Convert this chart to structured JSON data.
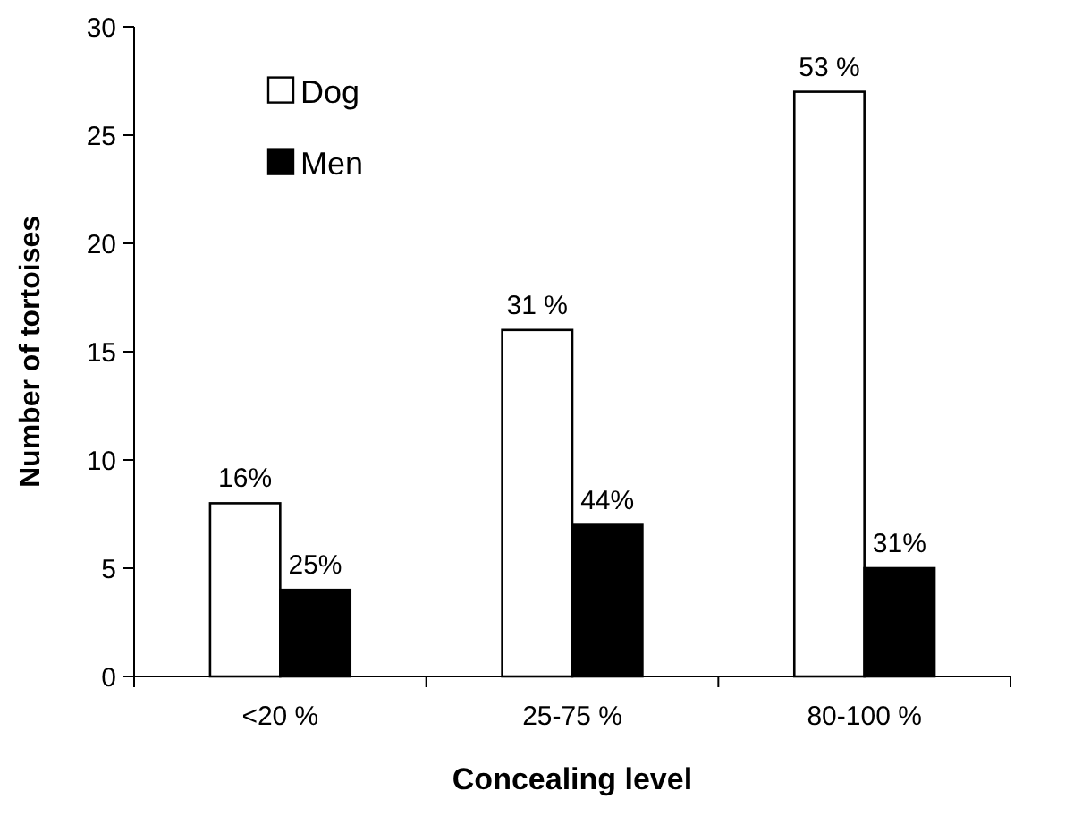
{
  "chart_data": {
    "type": "bar",
    "xlabel": "Concealing level",
    "ylabel": "Number of tortoises",
    "categories": [
      "<20 %",
      "25-75 %",
      "80-100 %"
    ],
    "series": [
      {
        "name": "Dog",
        "color": "#ffffff",
        "values": [
          8,
          16,
          27
        ]
      },
      {
        "name": "Men",
        "color": "#000000",
        "values": [
          4,
          7,
          5
        ]
      }
    ],
    "annotations": [
      {
        "text": "16%",
        "x": "<20 %",
        "y": 8
      },
      {
        "text": "31 %",
        "x": "25-75 %",
        "y": 16
      },
      {
        "text": "53 %",
        "x": "80-100 %",
        "y": 27
      },
      {
        "text": "25%",
        "x": "<20 %",
        "y": 4
      },
      {
        "text": "44%",
        "x": "25-75 %",
        "y": 7
      },
      {
        "text": "31%",
        "x": "80-100 %",
        "y": 5
      }
    ],
    "ylim": [
      0,
      30
    ],
    "yticks": [
      0,
      5,
      10,
      15,
      20,
      25,
      30
    ],
    "legend": "top left",
    "grid": false
  }
}
